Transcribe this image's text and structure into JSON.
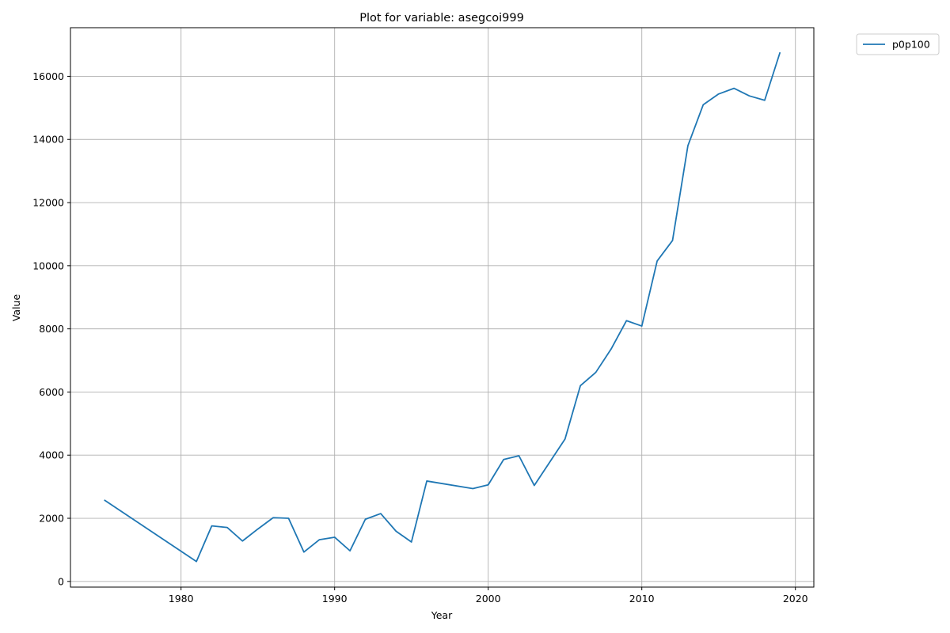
{
  "chart_data": {
    "type": "line",
    "title": "Plot for variable: asegcoi999",
    "xlabel": "Year",
    "ylabel": "Value",
    "xlim": [
      1972.8,
      2021.2
    ],
    "ylim": [
      -180,
      17540
    ],
    "xticks": [
      1980,
      1990,
      2000,
      2010,
      2020
    ],
    "yticks": [
      0,
      2000,
      4000,
      6000,
      8000,
      10000,
      12000,
      14000,
      16000
    ],
    "grid": true,
    "legend_position": "upper-right-outside",
    "line_color": "#1f77b4",
    "series": [
      {
        "name": "p0p100",
        "x": [
          1975,
          1981,
          1982,
          1983,
          1984,
          1985,
          1986,
          1987,
          1988,
          1989,
          1990,
          1991,
          1992,
          1993,
          1994,
          1995,
          1996,
          1999,
          2000,
          2001,
          2002,
          2003,
          2005,
          2006,
          2007,
          2008,
          2009,
          2010,
          2011,
          2012,
          2013,
          2014,
          2015,
          2016,
          2017,
          2018,
          2019
        ],
        "y": [
          2580,
          630,
          1760,
          1710,
          1280,
          1660,
          2020,
          2000,
          930,
          1320,
          1400,
          970,
          1970,
          2150,
          1590,
          1250,
          3180,
          2940,
          3060,
          3860,
          3980,
          3040,
          4510,
          6200,
          6620,
          7360,
          8260,
          8090,
          10150,
          10800,
          13800,
          15100,
          15440,
          15620,
          15380,
          15240,
          16760
        ]
      }
    ]
  }
}
